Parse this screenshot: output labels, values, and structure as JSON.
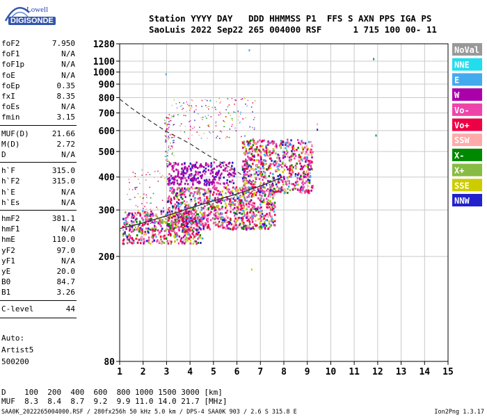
{
  "logo": {
    "top": "Lowell",
    "bottom": "DIGISONDE"
  },
  "header": {
    "line1": "Station YYYY DAY   DDD HHMMSS P1  FFS S AXN PPS IGA PS",
    "line2": "SaoLuis 2022 Sep22 265 004000 RSF      1 715 100 00- 11"
  },
  "params": [
    {
      "name": "foF2",
      "value": "7.950"
    },
    {
      "name": "foF1",
      "value": "N/A"
    },
    {
      "name": "foF1p",
      "value": "N/A"
    },
    {
      "name": "foE",
      "value": "N/A"
    },
    {
      "name": "foEp",
      "value": "0.35"
    },
    {
      "name": "fxI",
      "value": "8.35"
    },
    {
      "name": "foEs",
      "value": "N/A"
    },
    {
      "name": "fmin",
      "value": "3.15"
    },
    {
      "name": "MUF(D)",
      "value": "21.66"
    },
    {
      "name": "M(D)",
      "value": "2.72"
    },
    {
      "name": "D",
      "value": "N/A"
    },
    {
      "name": "h`F",
      "value": "315.0"
    },
    {
      "name": "h`F2",
      "value": "315.0"
    },
    {
      "name": "h`E",
      "value": "N/A"
    },
    {
      "name": "h`Es",
      "value": "N/A"
    },
    {
      "name": "hmF2",
      "value": "381.1"
    },
    {
      "name": "hmF1",
      "value": "N/A"
    },
    {
      "name": "hmE",
      "value": "110.0"
    },
    {
      "name": "yF2",
      "value": "97.0"
    },
    {
      "name": "yF1",
      "value": "N/A"
    },
    {
      "name": "yE",
      "value": "20.0"
    },
    {
      "name": "B0",
      "value": "84.7"
    },
    {
      "name": "B1",
      "value": "3.26"
    },
    {
      "name": "C-level",
      "value": "44"
    }
  ],
  "auto": {
    "line1": "Auto:",
    "line2": "Artist5",
    "line3": "500200"
  },
  "muf_table": {
    "line1": "D    100  200  400  600  800 1000 1500 3000 [km]",
    "line2": "MUF  8.3  8.4  8.7  9.2  9.9 11.0 14.0 21.7 [MHz]"
  },
  "footer": {
    "left": "SAA0K_2022265004000.RSF / 280fx256h 50 kHz 5.0 km / DPS-4 SAA0K 903 / 2.6 S 315.8 E",
    "right": "Ion2Png 1.3.17"
  },
  "legend": [
    {
      "label": "NoVal",
      "color": "#999999"
    },
    {
      "label": "NNE",
      "color": "#22ddee"
    },
    {
      "label": "E",
      "color": "#44aaee"
    },
    {
      "label": "W",
      "color": "#aa00aa"
    },
    {
      "label": "Vo-",
      "color": "#ee44aa"
    },
    {
      "label": "Vo+",
      "color": "#ee0044"
    },
    {
      "label": "SSW",
      "color": "#ffaaaa"
    },
    {
      "label": "X-",
      "color": "#008800"
    },
    {
      "label": "X+",
      "color": "#88bb44"
    },
    {
      "label": "SSE",
      "color": "#cccc00"
    },
    {
      "label": "NNW",
      "color": "#2222cc"
    }
  ],
  "chart_data": {
    "type": "scatter",
    "xlim": [
      1,
      15
    ],
    "ylim": [
      80,
      1280
    ],
    "x_ticks": [
      1,
      2,
      3,
      4,
      5,
      6,
      7,
      8,
      9,
      10,
      11,
      12,
      13,
      14,
      15
    ],
    "y_ticks": [
      80,
      200,
      300,
      400,
      500,
      600,
      700,
      800,
      900,
      1000,
      1100,
      1280
    ],
    "y_scale": "log",
    "grid": true,
    "legend_position": "right",
    "clusters": [
      {
        "name": "F-trace base",
        "x0": 1.1,
        "x1": 4.5,
        "y0": 225,
        "y1": 300,
        "n": 520,
        "mix": "mixed"
      },
      {
        "name": "F-trace main",
        "x0": 3.0,
        "x1": 7.6,
        "y0": 255,
        "y1": 370,
        "n": 900,
        "mix": "mixed"
      },
      {
        "name": "F-trace upper",
        "x0": 6.2,
        "x1": 9.2,
        "y0": 350,
        "y1": 560,
        "n": 650,
        "mix": "mixed"
      },
      {
        "name": "W band",
        "x0": 3.0,
        "x1": 5.9,
        "y0": 375,
        "y1": 460,
        "n": 260,
        "mix": "w"
      },
      {
        "name": "sparse column 3",
        "x0": 2.9,
        "x1": 3.3,
        "y0": 450,
        "y1": 700,
        "n": 90,
        "mix": "mixed"
      },
      {
        "name": "sparse upper",
        "x0": 3.2,
        "x1": 6.8,
        "y0": 560,
        "y1": 800,
        "n": 150,
        "mix": "mixed"
      },
      {
        "name": "sparse low",
        "x0": 1.3,
        "x1": 3.0,
        "y0": 300,
        "y1": 430,
        "n": 60,
        "mix": "mixed"
      }
    ],
    "isolated_points": [
      {
        "x": 11.8,
        "y": 1130,
        "color": "#008888"
      },
      {
        "x": 11.9,
        "y": 580,
        "color": "#008888"
      },
      {
        "x": 6.5,
        "y": 1220,
        "color": "#44aaee"
      },
      {
        "x": 2.95,
        "y": 990,
        "color": "#44aaee"
      },
      {
        "x": 6.6,
        "y": 180,
        "color": "#cccc00"
      },
      {
        "x": 9.4,
        "y": 610,
        "color": "#2222cc"
      },
      {
        "x": 9.4,
        "y": 640,
        "color": "#ffaaaa"
      }
    ],
    "curves": [
      {
        "name": "profile (solid)",
        "style": "solid",
        "x": [
          1.0,
          2.0,
          3.0,
          4.0,
          5.0,
          6.0,
          7.0,
          7.5,
          7.95
        ],
        "y": [
          255,
          268,
          285,
          305,
          325,
          345,
          370,
          385,
          400
        ]
      },
      {
        "name": "profile (dotted)",
        "style": "dotted",
        "x": [
          1.0,
          2.0,
          3.0,
          4.0,
          5.0,
          6.0,
          7.0,
          7.5,
          8.0
        ],
        "y": [
          250,
          262,
          278,
          298,
          318,
          338,
          362,
          378,
          395
        ]
      },
      {
        "name": "MUF curve (dashed)",
        "style": "dashed",
        "x": [
          1.0,
          1.5,
          2.0,
          2.5,
          3.0,
          3.5,
          4.0,
          4.5,
          5.0,
          5.5,
          6.0,
          6.5,
          6.8
        ],
        "y": [
          790,
          730,
          680,
          635,
          595,
          565,
          535,
          500,
          470,
          445,
          420,
          390,
          375
        ]
      }
    ]
  }
}
